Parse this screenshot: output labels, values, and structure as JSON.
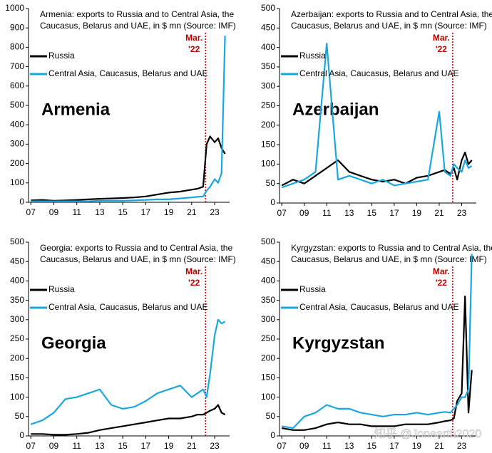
{
  "watermark": "知乎 @Jonearth2020",
  "chart_data": [
    {
      "type": "line",
      "label": "Armenia",
      "title": [
        "Armenia: exports to Russia and to Central Asia, the",
        "Caucasus, Belarus and UAE, in $ mn (Source: IMF)"
      ],
      "x": [
        2007,
        2008,
        2009,
        2010,
        2011,
        2012,
        2013,
        2014,
        2015,
        2016,
        2017,
        2018,
        2019,
        2020,
        2021,
        2021.5,
        2022,
        2022.3,
        2022.6,
        2023,
        2023.3,
        2023.6,
        2023.9
      ],
      "series": [
        {
          "name": "Russia",
          "color": "#000000",
          "values": [
            10,
            12,
            8,
            10,
            12,
            15,
            18,
            20,
            22,
            25,
            30,
            40,
            50,
            55,
            65,
            70,
            80,
            300,
            340,
            310,
            330,
            280,
            250
          ]
        },
        {
          "name": "Central Asia, Caucasus, Belarus and UAE",
          "color": "#1aa7e0",
          "values": [
            5,
            5,
            5,
            5,
            5,
            5,
            8,
            8,
            8,
            10,
            12,
            15,
            15,
            20,
            25,
            28,
            30,
            60,
            80,
            120,
            100,
            150,
            860
          ]
        }
      ],
      "xlim": [
        2006.8,
        2024.3
      ],
      "xticks": [
        {
          "value": 2007,
          "label": "07"
        },
        {
          "value": 2009,
          "label": "09"
        },
        {
          "value": 2011,
          "label": "11"
        },
        {
          "value": 2013,
          "label": "13"
        },
        {
          "value": 2015,
          "label": "15"
        },
        {
          "value": 2017,
          "label": "17"
        },
        {
          "value": 2019,
          "label": "19"
        },
        {
          "value": 2021,
          "label": "21"
        },
        {
          "value": 2023,
          "label": "23"
        }
      ],
      "ylim": [
        0,
        1000
      ],
      "yticks": [
        0,
        100,
        200,
        300,
        400,
        500,
        600,
        700,
        800,
        900,
        1000
      ],
      "event": {
        "x": 2022.2,
        "label": [
          "Mar.",
          "'22"
        ],
        "color": "#c00000"
      }
    },
    {
      "type": "line",
      "label": "Azerbaijan",
      "title": [
        "Azerbaijan: exports to Russia and to Central Asia, the",
        "Caucasus, Belarus and UAE, in $ mn (Source: IMF)"
      ],
      "x": [
        2007,
        2008,
        2009,
        2010,
        2011,
        2012,
        2013,
        2014,
        2015,
        2016,
        2017,
        2018,
        2019,
        2020,
        2021,
        2021.5,
        2022,
        2022.3,
        2022.6,
        2023,
        2023.3,
        2023.6,
        2023.9
      ],
      "series": [
        {
          "name": "Russia",
          "color": "#000000",
          "values": [
            45,
            60,
            50,
            70,
            90,
            110,
            80,
            70,
            60,
            55,
            60,
            50,
            65,
            70,
            80,
            85,
            75,
            90,
            60,
            110,
            130,
            100,
            110
          ]
        },
        {
          "name": "Central Asia, Caucasus, Belarus and UAE",
          "color": "#1aa7e0",
          "values": [
            40,
            50,
            60,
            80,
            410,
            60,
            70,
            60,
            50,
            60,
            45,
            50,
            55,
            60,
            235,
            80,
            70,
            100,
            90,
            80,
            110,
            90,
            95
          ]
        }
      ],
      "xlim": [
        2006.8,
        2024.3
      ],
      "xticks": [
        {
          "value": 2007,
          "label": "07"
        },
        {
          "value": 2009,
          "label": "09"
        },
        {
          "value": 2011,
          "label": "11"
        },
        {
          "value": 2013,
          "label": "13"
        },
        {
          "value": 2015,
          "label": "15"
        },
        {
          "value": 2017,
          "label": "17"
        },
        {
          "value": 2019,
          "label": "19"
        },
        {
          "value": 2021,
          "label": "21"
        },
        {
          "value": 2023,
          "label": "23"
        }
      ],
      "ylim": [
        0,
        500
      ],
      "yticks": [
        0,
        50,
        100,
        150,
        200,
        250,
        300,
        350,
        400,
        450,
        500
      ],
      "event": {
        "x": 2022.2,
        "label": [
          "Mar.",
          "'22"
        ],
        "color": "#c00000"
      }
    },
    {
      "type": "line",
      "label": "Georgia",
      "title": [
        "Georgia: exports to Russia and to Central Asia, the",
        "Caucasus, Belarus and UAE, in $ mn (Source: IMF)"
      ],
      "x": [
        2007,
        2008,
        2009,
        2010,
        2011,
        2012,
        2013,
        2014,
        2015,
        2016,
        2017,
        2018,
        2019,
        2020,
        2021,
        2021.5,
        2022,
        2022.3,
        2022.6,
        2023,
        2023.3,
        2023.6,
        2023.9
      ],
      "series": [
        {
          "name": "Russia",
          "color": "#000000",
          "values": [
            5,
            5,
            3,
            3,
            5,
            8,
            15,
            20,
            25,
            30,
            35,
            40,
            45,
            45,
            50,
            55,
            55,
            60,
            65,
            70,
            80,
            60,
            55
          ]
        },
        {
          "name": "Central Asia, Caucasus, Belarus and UAE",
          "color": "#1aa7e0",
          "values": [
            30,
            40,
            60,
            95,
            100,
            110,
            120,
            80,
            70,
            75,
            90,
            110,
            120,
            130,
            100,
            110,
            120,
            100,
            160,
            260,
            300,
            290,
            295
          ]
        }
      ],
      "xlim": [
        2006.8,
        2024.3
      ],
      "xticks": [
        {
          "value": 2007,
          "label": "07"
        },
        {
          "value": 2009,
          "label": "09"
        },
        {
          "value": 2011,
          "label": "11"
        },
        {
          "value": 2013,
          "label": "13"
        },
        {
          "value": 2015,
          "label": "15"
        },
        {
          "value": 2017,
          "label": "17"
        },
        {
          "value": 2019,
          "label": "19"
        },
        {
          "value": 2021,
          "label": "21"
        },
        {
          "value": 2023,
          "label": "23"
        }
      ],
      "ylim": [
        0,
        500
      ],
      "yticks": [
        0,
        50,
        100,
        150,
        200,
        250,
        300,
        350,
        400,
        450,
        500
      ],
      "event": {
        "x": 2022.2,
        "label": [
          "Mar.",
          "'22"
        ],
        "color": "#c00000"
      }
    },
    {
      "type": "line",
      "label": "Kyrgyzstan",
      "title": [
        "Kyrgyzstan: exports to Russia and to Central Asia, the",
        "Caucasus, Belarus and UAE, in $ mn (Source: IMF)"
      ],
      "x": [
        2007,
        2008,
        2009,
        2010,
        2011,
        2012,
        2013,
        2014,
        2015,
        2016,
        2017,
        2018,
        2019,
        2020,
        2021,
        2021.5,
        2022,
        2022.3,
        2022.6,
        2023,
        2023.3,
        2023.6,
        2023.9
      ],
      "series": [
        {
          "name": "Russia",
          "color": "#000000",
          "values": [
            20,
            15,
            15,
            20,
            30,
            35,
            30,
            30,
            25,
            25,
            25,
            30,
            30,
            30,
            35,
            38,
            40,
            45,
            90,
            110,
            360,
            60,
            170
          ]
        },
        {
          "name": "Central Asia, Caucasus, Belarus and UAE",
          "color": "#1aa7e0",
          "values": [
            25,
            20,
            50,
            60,
            80,
            70,
            70,
            60,
            55,
            50,
            55,
            55,
            60,
            55,
            60,
            62,
            60,
            70,
            80,
            100,
            100,
            120,
            470
          ]
        }
      ],
      "xlim": [
        2006.8,
        2024.3
      ],
      "xticks": [
        {
          "value": 2007,
          "label": "07"
        },
        {
          "value": 2009,
          "label": "09"
        },
        {
          "value": 2011,
          "label": "11"
        },
        {
          "value": 2013,
          "label": "13"
        },
        {
          "value": 2015,
          "label": "15"
        },
        {
          "value": 2017,
          "label": "17"
        },
        {
          "value": 2019,
          "label": "19"
        },
        {
          "value": 2021,
          "label": "21"
        },
        {
          "value": 2023,
          "label": "23"
        }
      ],
      "ylim": [
        0,
        500
      ],
      "yticks": [
        0,
        50,
        100,
        150,
        200,
        250,
        300,
        350,
        400,
        450,
        500
      ],
      "event": {
        "x": 2022.2,
        "label": [
          "Mar.",
          "'22"
        ],
        "color": "#c00000"
      }
    }
  ]
}
